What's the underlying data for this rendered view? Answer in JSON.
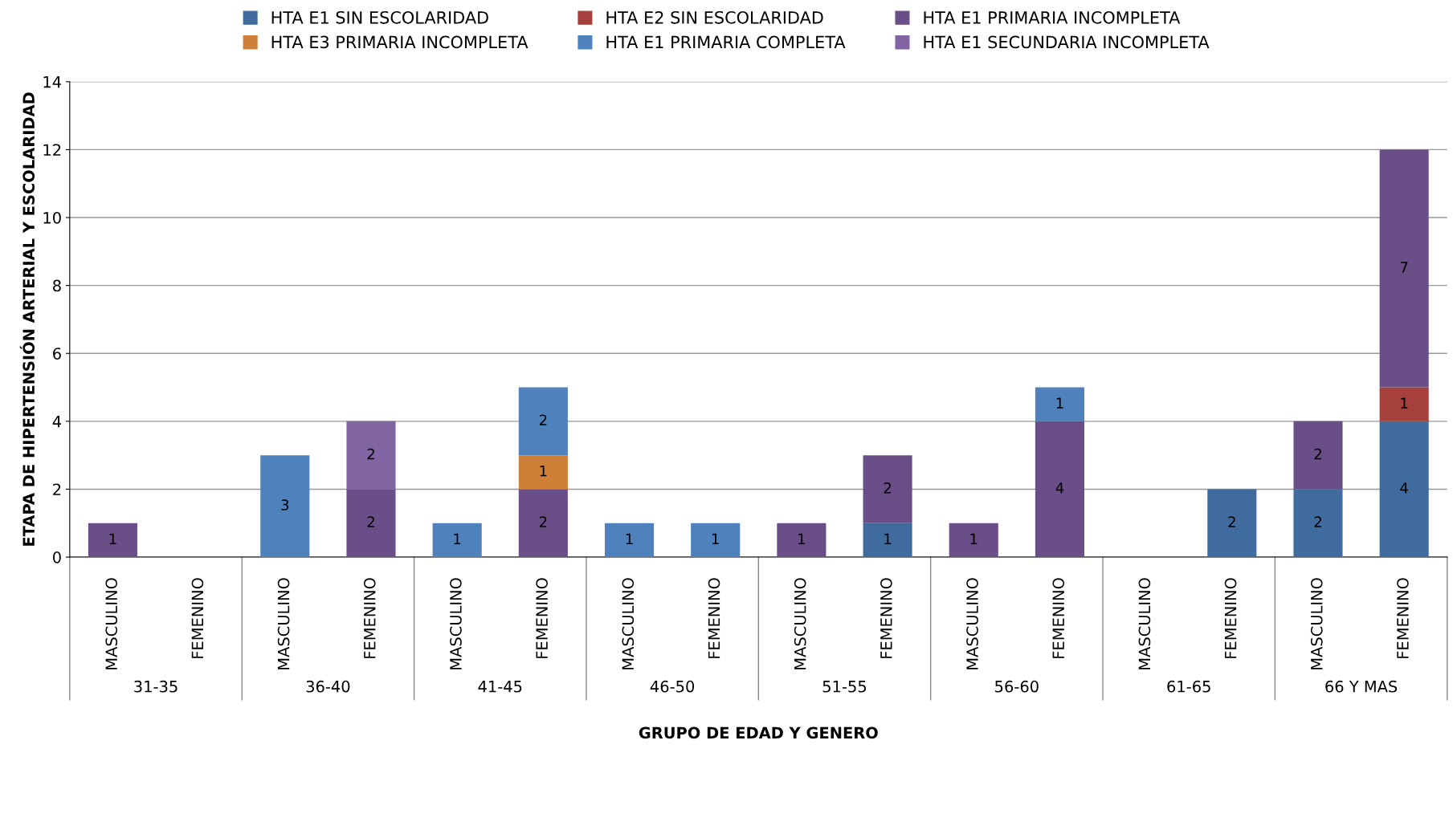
{
  "chart_data": {
    "type": "bar",
    "stacked": true,
    "xlabel": "GRUPO DE EDAD Y GENERO",
    "ylabel": "ETAPA DE HIPERTENSIÓN ARTERIAL Y ESCOLARIDAD",
    "categories": [
      "MASCULINO",
      "FEMENINO",
      "MASCULINO",
      "FEMENINO",
      "MASCULINO",
      "FEMENINO",
      "MASCULINO",
      "FEMENINO",
      "MASCULINO",
      "FEMENINO",
      "MASCULINO",
      "FEMENINO",
      "MASCULINO",
      "FEMENINO",
      "MASCULINO",
      "FEMENINO"
    ],
    "annotations": [
      "31-35",
      "36-40",
      "41-45",
      "46-50",
      "51-55",
      "56-60",
      "61-65",
      "66 Y MAS"
    ],
    "series": [
      {
        "name": "HTA E1 SIN ESCOLARIDAD",
        "color": "#3f6b9f",
        "values": [
          null,
          null,
          null,
          null,
          null,
          null,
          null,
          null,
          null,
          1,
          null,
          null,
          null,
          2,
          2,
          4
        ]
      },
      {
        "name": "HTA E2 SIN ESCOLARIDAD",
        "color": "#a5403d",
        "values": [
          null,
          null,
          null,
          null,
          null,
          null,
          null,
          null,
          null,
          null,
          null,
          null,
          null,
          null,
          null,
          1
        ]
      },
      {
        "name": "HTA E1 PRIMARIA INCOMPLETA",
        "color": "#6a4e87",
        "values": [
          1,
          null,
          null,
          2,
          null,
          2,
          null,
          null,
          1,
          2,
          1,
          4,
          null,
          null,
          2,
          7
        ]
      },
      {
        "name": "HTA E3 PRIMARIA INCOMPLETA",
        "color": "#d07f38",
        "values": [
          null,
          null,
          null,
          null,
          null,
          1,
          null,
          null,
          null,
          null,
          null,
          null,
          null,
          null,
          null,
          null
        ]
      },
      {
        "name": "HTA E1 PRIMARIA COMPLETA",
        "color": "#4f81bd",
        "values": [
          null,
          null,
          3,
          null,
          1,
          2,
          1,
          1,
          null,
          null,
          null,
          1,
          null,
          null,
          null,
          null
        ]
      },
      {
        "name": "HTA E1 SECUNDARIA INCOMPLETA",
        "color": "#8165a3",
        "values": [
          null,
          null,
          null,
          2,
          null,
          null,
          null,
          null,
          null,
          null,
          null,
          null,
          null,
          null,
          null,
          null
        ]
      }
    ],
    "ylim": [
      0,
      14
    ],
    "yticks": [
      0,
      2,
      4,
      6,
      8,
      10,
      12,
      14
    ],
    "grid": "y",
    "legend": "top",
    "data_labels": true
  }
}
